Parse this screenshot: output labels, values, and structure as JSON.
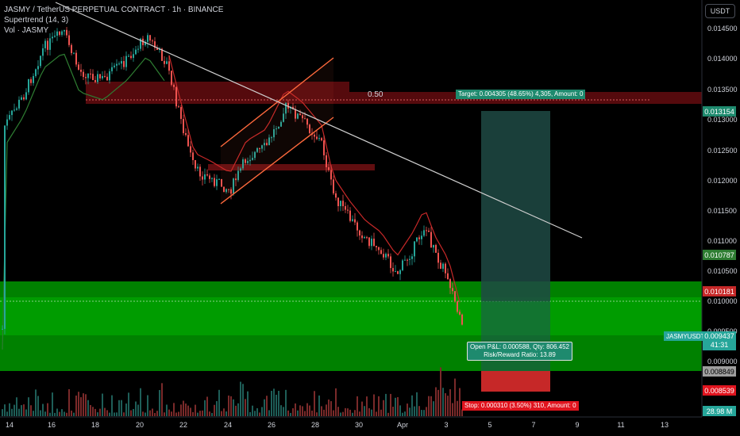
{
  "legend": {
    "symbol": "JASMY / TetherUS PERPETUAL CONTRACT · 1h · BINANCE",
    "indicator": "Supertrend (14, 3)",
    "volume": "Vol · JASMY"
  },
  "currency_button": "USDT",
  "fib_label": "0.50",
  "price_axis": {
    "ticks": [
      "0.014500",
      "0.014000",
      "0.013500",
      "0.013000",
      "0.012500",
      "0.012000",
      "0.011500",
      "0.011000",
      "0.010500",
      "0.010000",
      "0.009500",
      "0.009000"
    ]
  },
  "price_badges": {
    "target": "0.013154",
    "supertrend_up": "0.010787",
    "supertrend_down": "0.010181",
    "symbol_label": "JASMYUSDT.P",
    "last_price": "0.009437",
    "countdown": "41:31",
    "entry": "0.008849",
    "stop": "0.008539",
    "volume": "28.98 M"
  },
  "position_tool": {
    "target_label": "Target: 0.004305 (48.65%) 4,305, Amount: 0",
    "open_pnl": "Open P&L: 0.000588, Qty: 806.452",
    "risk_reward": "Risk/Reward Ratio: 13.89",
    "stop_label": "Stop: 0.000310 (3.50%) 310, Amount: 0"
  },
  "time_axis": [
    "14",
    "16",
    "18",
    "20",
    "22",
    "24",
    "26",
    "28",
    "30",
    "Apr",
    "3",
    "5",
    "7",
    "9",
    "11",
    "13"
  ],
  "colors": {
    "up": "#26a69a",
    "down": "#ef5350",
    "supertrend_up": "#2e7d32",
    "supertrend_down": "#c62828",
    "green_zone": "#00a000",
    "resistance_zone": "#6b0f12",
    "target_bg": "#1e4a44",
    "stop_bg": "#c62828",
    "channel": "#ff6a3d",
    "trendline": "#cfcfcf"
  }
}
